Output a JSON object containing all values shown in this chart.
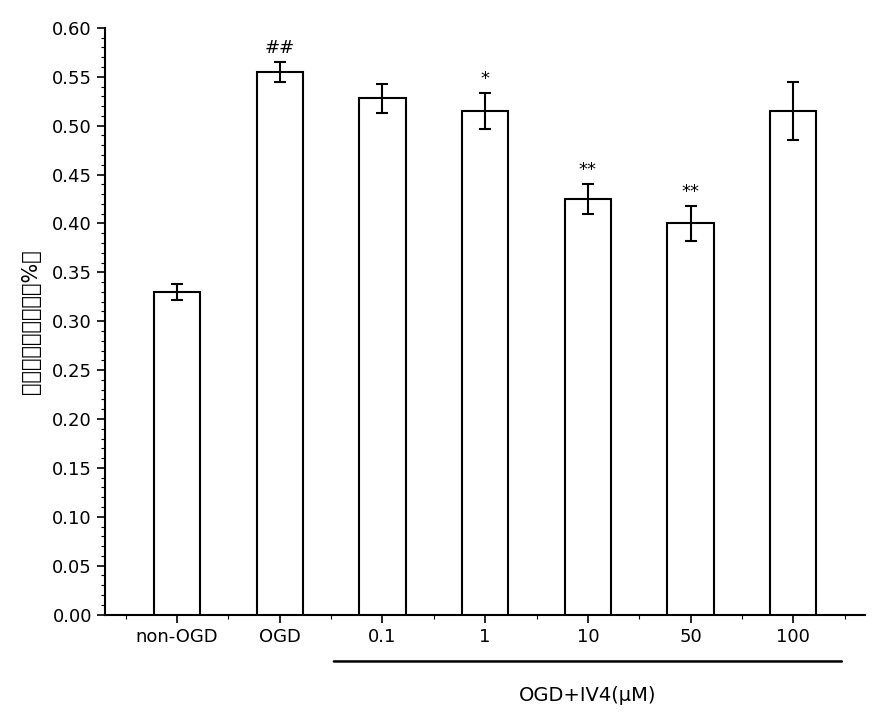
{
  "categories": [
    "non-OGD",
    "OGD",
    "0.1",
    "1",
    "10",
    "50",
    "100"
  ],
  "values": [
    0.33,
    0.555,
    0.528,
    0.515,
    0.425,
    0.4,
    0.515
  ],
  "errors": [
    0.008,
    0.01,
    0.015,
    0.018,
    0.015,
    0.018,
    0.03
  ],
  "bar_color": "#ffffff",
  "bar_edge_color": "#000000",
  "bar_linewidth": 1.5,
  "error_color": "#000000",
  "error_linewidth": 1.5,
  "error_capsize": 4,
  "annotations": [
    {
      "bar_index": 1,
      "text": "##",
      "fontsize": 13
    },
    {
      "bar_index": 3,
      "text": "*",
      "fontsize": 13
    },
    {
      "bar_index": 4,
      "text": "**",
      "fontsize": 13
    },
    {
      "bar_index": 5,
      "text": "**",
      "fontsize": 13
    }
  ],
  "ylabel": "乳酸脇氧酶漏出率（%）",
  "ylabel_fontsize": 15,
  "xlabel_group": "OGD+IV4(μM)",
  "xlabel_group_fontsize": 14,
  "ylim": [
    0.0,
    0.6
  ],
  "ytick_major_step": 0.05,
  "ytick_minor_step": 0.01,
  "background_color": "#ffffff",
  "figure_width": 8.86,
  "figure_height": 7.22,
  "dpi": 100,
  "tick_fontsize": 13,
  "bar_width": 0.45,
  "spine_linewidth": 1.5
}
